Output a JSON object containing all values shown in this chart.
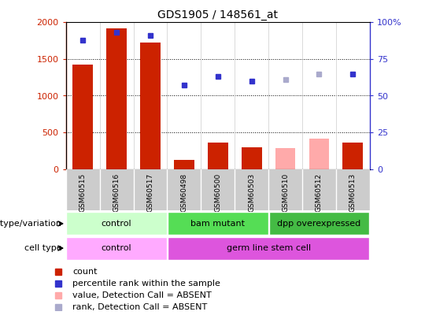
{
  "title": "GDS1905 / 148561_at",
  "samples": [
    "GSM60515",
    "GSM60516",
    "GSM60517",
    "GSM60498",
    "GSM60500",
    "GSM60503",
    "GSM60510",
    "GSM60512",
    "GSM60513"
  ],
  "bar_values": [
    1420,
    1920,
    1730,
    130,
    360,
    300,
    290,
    410,
    360
  ],
  "bar_colors": [
    "#cc2200",
    "#cc2200",
    "#cc2200",
    "#cc2200",
    "#cc2200",
    "#cc2200",
    "#ffaaaa",
    "#ffaaaa",
    "#cc2200"
  ],
  "rank_values": [
    88,
    93,
    91,
    57,
    63,
    60,
    61,
    65,
    65
  ],
  "rank_colors": [
    "#3333cc",
    "#3333cc",
    "#3333cc",
    "#3333cc",
    "#3333cc",
    "#3333cc",
    "#aaaacc",
    "#aaaacc",
    "#3333cc"
  ],
  "ylim_left": [
    0,
    2000
  ],
  "ylim_right": [
    0,
    100
  ],
  "yticks_left": [
    0,
    500,
    1000,
    1500,
    2000
  ],
  "yticks_right": [
    0,
    25,
    50,
    75,
    100
  ],
  "genotype_groups": [
    {
      "label": "control",
      "start": 0,
      "end": 3,
      "color": "#ccffcc"
    },
    {
      "label": "bam mutant",
      "start": 3,
      "end": 6,
      "color": "#55dd55"
    },
    {
      "label": "dpp overexpressed",
      "start": 6,
      "end": 9,
      "color": "#44bb44"
    }
  ],
  "celltype_groups": [
    {
      "label": "control",
      "start": 0,
      "end": 3,
      "color": "#ffaaff"
    },
    {
      "label": "germ line stem cell",
      "start": 3,
      "end": 9,
      "color": "#dd55dd"
    }
  ],
  "genotype_label": "genotype/variation",
  "celltype_label": "cell type",
  "legend_items": [
    {
      "label": "count",
      "color": "#cc2200",
      "marker": "s"
    },
    {
      "label": "percentile rank within the sample",
      "color": "#3333cc",
      "marker": "s"
    },
    {
      "label": "value, Detection Call = ABSENT",
      "color": "#ffaaaa",
      "marker": "s"
    },
    {
      "label": "rank, Detection Call = ABSENT",
      "color": "#aaaacc",
      "marker": "s"
    }
  ]
}
